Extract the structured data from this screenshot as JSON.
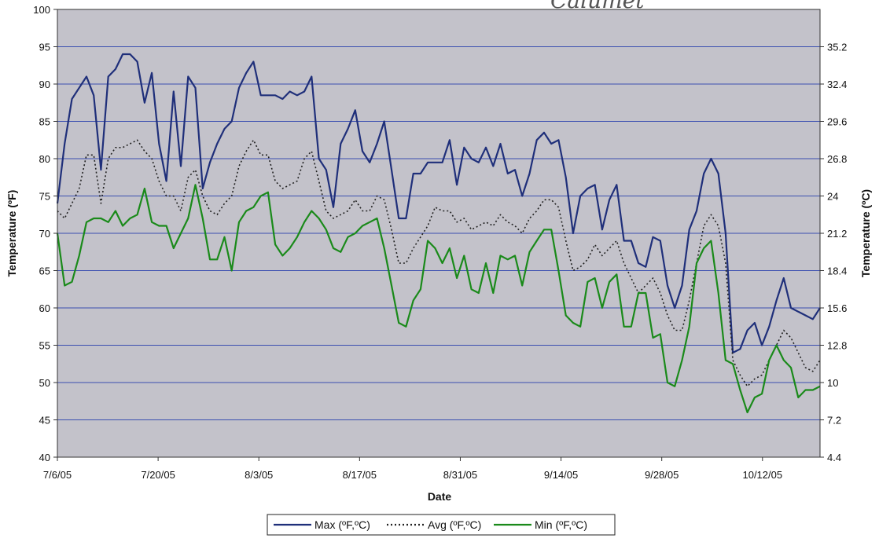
{
  "chart_data": {
    "type": "line",
    "xlabel": "Date",
    "ylabel": "Temperature (ºF)",
    "y2label": "Temperature (ºC)",
    "ylim": [
      40,
      100
    ],
    "yticks": [
      40,
      45,
      50,
      55,
      60,
      65,
      70,
      75,
      80,
      85,
      90,
      95,
      100
    ],
    "y2ticks": [
      "4.4",
      "7.2",
      "10",
      "12.8",
      "15.6",
      "18.4",
      "21.2",
      "24",
      "26.8",
      "29.6",
      "32.4",
      "35.2"
    ],
    "y2tick_f_values": [
      40,
      45,
      50,
      55,
      60,
      65,
      70,
      75,
      80,
      85,
      90,
      95
    ],
    "xlim": [
      "7/6/05",
      "10/20/05"
    ],
    "xticks": [
      "7/6/05",
      "7/20/05",
      "8/3/05",
      "8/17/05",
      "8/31/05",
      "9/14/05",
      "9/28/05",
      "10/12/05"
    ],
    "grid": "horizontal",
    "legend_position": "bottom",
    "plot_background": "#c3c2ca",
    "annotation_text": "Calumet",
    "series": [
      {
        "name": "Max (ºF,ºC)",
        "color": "#1f2f7a",
        "style": "solid",
        "values": [
          74,
          82,
          88,
          89.5,
          91,
          88.5,
          78.5,
          91,
          92,
          94,
          94,
          93,
          87.5,
          91.5,
          82,
          77,
          89,
          79,
          91,
          89.5,
          76,
          79.5,
          82,
          84,
          85,
          89.5,
          91.5,
          93,
          88.5,
          88.5,
          88.5,
          88,
          89,
          88.5,
          89,
          91,
          80,
          78.5,
          73.5,
          82,
          84,
          86.5,
          81,
          79.5,
          82,
          85,
          78.5,
          72,
          72,
          78,
          78,
          79.5,
          79.5,
          79.5,
          82.5,
          76.5,
          81.5,
          80,
          79.5,
          81.5,
          79,
          82,
          78,
          78.5,
          75,
          78,
          82.5,
          83.5,
          82,
          82.5,
          77.5,
          70,
          75,
          76,
          76.5,
          70.5,
          74.5,
          76.5,
          69,
          69,
          66,
          65.5,
          69.5,
          69,
          63,
          60,
          63,
          70.5,
          73,
          78,
          80,
          78,
          70,
          54,
          54.5,
          57,
          58,
          55,
          57.5,
          61,
          64,
          60,
          59.5,
          59,
          58.5,
          60
        ]
      },
      {
        "name": "Avg (ºF,ºC)",
        "color": "#222222",
        "style": "dotted",
        "values": [
          73,
          72,
          74,
          76,
          80.5,
          80.5,
          74,
          80,
          81.5,
          81.5,
          82,
          82.5,
          81,
          80,
          77,
          75,
          75,
          73,
          77.5,
          78.5,
          75,
          73,
          72.5,
          74,
          75,
          79,
          81,
          82.5,
          80.5,
          80.5,
          77,
          76,
          76.5,
          77,
          80,
          81,
          77,
          73,
          72,
          72.5,
          73,
          74.5,
          73,
          73,
          75,
          74.5,
          70.5,
          66,
          66,
          68,
          69.5,
          71,
          73.5,
          73,
          73,
          71.5,
          72,
          70.5,
          71,
          71.5,
          71,
          72.5,
          71.5,
          71,
          70,
          72,
          73,
          74.5,
          74.5,
          73.5,
          69,
          65,
          65.5,
          66.5,
          68.5,
          67,
          68,
          69,
          66,
          64,
          62,
          63,
          64,
          62,
          59,
          57,
          57,
          61,
          66,
          71,
          72.5,
          71,
          66,
          53,
          51,
          49.5,
          50.5,
          51,
          53,
          55,
          57,
          56,
          54,
          52,
          51.5,
          53
        ]
      },
      {
        "name": "Min (ºF,ºC)",
        "color": "#1a8a1a",
        "style": "solid",
        "values": [
          70,
          63,
          63.5,
          67,
          71.5,
          72,
          72,
          71.5,
          73,
          71,
          72,
          72.5,
          76,
          71.5,
          71,
          71,
          68,
          70,
          72,
          76.5,
          72,
          66.5,
          66.5,
          69.5,
          65,
          71.5,
          73,
          73.5,
          75,
          75.5,
          68.5,
          67,
          68,
          69.5,
          71.5,
          73,
          72,
          70.5,
          68,
          67.5,
          69.5,
          70,
          71,
          71.5,
          72,
          68,
          63,
          58,
          57.5,
          61,
          62.5,
          69,
          68,
          66,
          68,
          64,
          67,
          62.5,
          62,
          66,
          62,
          67,
          66.5,
          67,
          63,
          67.5,
          69,
          70.5,
          70.5,
          65,
          59,
          58,
          57.5,
          63.5,
          64,
          60,
          63.5,
          64.5,
          57.5,
          57.5,
          62,
          62,
          56,
          56.5,
          50,
          49.5,
          53,
          57.5,
          66,
          68,
          69,
          62,
          53,
          52.5,
          49,
          46,
          48,
          48.5,
          53,
          55,
          53,
          52,
          48,
          49,
          49,
          49.5
        ]
      }
    ]
  }
}
